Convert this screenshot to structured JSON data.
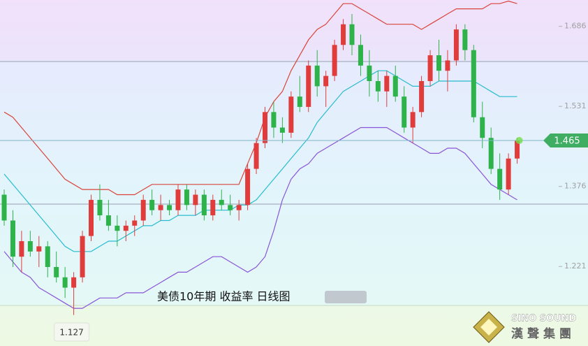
{
  "chart_data": {
    "type": "candlestick",
    "title": "美债10年期 收益率 日线图",
    "logo": {
      "en": "SINO SOUND",
      "zh": "漢聲集團"
    },
    "ylim": [
      1.067,
      1.737
    ],
    "yticks": [
      1.221,
      1.376,
      1.531,
      1.686
    ],
    "up_color": "#e03c3c",
    "down_color": "#2db34a",
    "ohlc": [
      [
        1.36,
        1.37,
        1.3,
        1.31
      ],
      [
        1.31,
        1.33,
        1.22,
        1.24
      ],
      [
        1.24,
        1.29,
        1.21,
        1.27
      ],
      [
        1.27,
        1.29,
        1.24,
        1.25
      ],
      [
        1.25,
        1.28,
        1.22,
        1.26
      ],
      [
        1.26,
        1.27,
        1.2,
        1.22
      ],
      [
        1.22,
        1.25,
        1.19,
        1.2
      ],
      [
        1.2,
        1.22,
        1.16,
        1.18
      ],
      [
        1.18,
        1.21,
        1.127,
        1.2
      ],
      [
        1.2,
        1.29,
        1.19,
        1.28
      ],
      [
        1.28,
        1.36,
        1.27,
        1.35
      ],
      [
        1.35,
        1.38,
        1.31,
        1.32
      ],
      [
        1.32,
        1.35,
        1.29,
        1.3
      ],
      [
        1.3,
        1.32,
        1.26,
        1.29
      ],
      [
        1.29,
        1.31,
        1.27,
        1.3
      ],
      [
        1.3,
        1.32,
        1.28,
        1.31
      ],
      [
        1.31,
        1.36,
        1.3,
        1.35
      ],
      [
        1.35,
        1.37,
        1.32,
        1.33
      ],
      [
        1.33,
        1.36,
        1.31,
        1.34
      ],
      [
        1.34,
        1.35,
        1.32,
        1.33
      ],
      [
        1.33,
        1.38,
        1.32,
        1.37
      ],
      [
        1.37,
        1.38,
        1.33,
        1.34
      ],
      [
        1.34,
        1.37,
        1.32,
        1.36
      ],
      [
        1.36,
        1.37,
        1.31,
        1.32
      ],
      [
        1.32,
        1.36,
        1.31,
        1.35
      ],
      [
        1.35,
        1.37,
        1.33,
        1.34
      ],
      [
        1.34,
        1.36,
        1.32,
        1.33
      ],
      [
        1.33,
        1.35,
        1.31,
        1.34
      ],
      [
        1.34,
        1.42,
        1.33,
        1.41
      ],
      [
        1.41,
        1.47,
        1.4,
        1.46
      ],
      [
        1.46,
        1.53,
        1.45,
        1.52
      ],
      [
        1.52,
        1.54,
        1.47,
        1.49
      ],
      [
        1.49,
        1.51,
        1.46,
        1.48
      ],
      [
        1.48,
        1.56,
        1.47,
        1.55
      ],
      [
        1.55,
        1.59,
        1.52,
        1.53
      ],
      [
        1.53,
        1.62,
        1.52,
        1.61
      ],
      [
        1.61,
        1.64,
        1.55,
        1.57
      ],
      [
        1.57,
        1.6,
        1.53,
        1.59
      ],
      [
        1.59,
        1.66,
        1.58,
        1.65
      ],
      [
        1.65,
        1.7,
        1.64,
        1.69
      ],
      [
        1.69,
        1.71,
        1.63,
        1.65
      ],
      [
        1.65,
        1.67,
        1.59,
        1.61
      ],
      [
        1.61,
        1.64,
        1.55,
        1.58
      ],
      [
        1.58,
        1.6,
        1.54,
        1.56
      ],
      [
        1.56,
        1.6,
        1.53,
        1.59
      ],
      [
        1.59,
        1.61,
        1.54,
        1.55
      ],
      [
        1.55,
        1.57,
        1.48,
        1.49
      ],
      [
        1.49,
        1.53,
        1.46,
        1.52
      ],
      [
        1.52,
        1.59,
        1.51,
        1.58
      ],
      [
        1.58,
        1.64,
        1.57,
        1.63
      ],
      [
        1.63,
        1.66,
        1.58,
        1.6
      ],
      [
        1.6,
        1.64,
        1.56,
        1.62
      ],
      [
        1.62,
        1.69,
        1.61,
        1.68
      ],
      [
        1.68,
        1.69,
        1.62,
        1.64
      ],
      [
        1.64,
        1.65,
        1.5,
        1.51
      ],
      [
        1.51,
        1.54,
        1.45,
        1.47
      ],
      [
        1.47,
        1.49,
        1.4,
        1.41
      ],
      [
        1.41,
        1.44,
        1.35,
        1.37
      ],
      [
        1.37,
        1.44,
        1.36,
        1.43
      ],
      [
        1.43,
        1.47,
        1.42,
        1.465
      ]
    ],
    "bands": [
      {
        "color": "#d9453a",
        "values": [
          1.52,
          1.51,
          1.49,
          1.47,
          1.45,
          1.43,
          1.41,
          1.39,
          1.38,
          1.37,
          1.37,
          1.37,
          1.37,
          1.36,
          1.36,
          1.36,
          1.37,
          1.38,
          1.38,
          1.38,
          1.38,
          1.38,
          1.38,
          1.38,
          1.38,
          1.38,
          1.38,
          1.38,
          1.42,
          1.46,
          1.51,
          1.54,
          1.56,
          1.6,
          1.63,
          1.66,
          1.68,
          1.69,
          1.71,
          1.73,
          1.73,
          1.72,
          1.71,
          1.7,
          1.69,
          1.69,
          1.69,
          1.69,
          1.68,
          1.69,
          1.7,
          1.71,
          1.72,
          1.72,
          1.72,
          1.72,
          1.73,
          1.73,
          1.735,
          1.73
        ]
      },
      {
        "color": "#27bcd0",
        "values": [
          1.4,
          1.38,
          1.36,
          1.34,
          1.32,
          1.3,
          1.28,
          1.26,
          1.25,
          1.25,
          1.25,
          1.26,
          1.27,
          1.27,
          1.28,
          1.29,
          1.3,
          1.3,
          1.31,
          1.31,
          1.32,
          1.32,
          1.32,
          1.33,
          1.33,
          1.33,
          1.33,
          1.34,
          1.34,
          1.35,
          1.37,
          1.39,
          1.41,
          1.43,
          1.45,
          1.47,
          1.5,
          1.52,
          1.54,
          1.56,
          1.57,
          1.58,
          1.59,
          1.6,
          1.6,
          1.59,
          1.58,
          1.57,
          1.57,
          1.57,
          1.58,
          1.58,
          1.58,
          1.58,
          1.58,
          1.57,
          1.56,
          1.55,
          1.55,
          1.55
        ]
      },
      {
        "color": "#8a55d8",
        "values": [
          1.25,
          1.23,
          1.21,
          1.2,
          1.18,
          1.17,
          1.16,
          1.15,
          1.14,
          1.14,
          1.15,
          1.16,
          1.16,
          1.16,
          1.17,
          1.17,
          1.17,
          1.18,
          1.19,
          1.2,
          1.21,
          1.21,
          1.22,
          1.23,
          1.24,
          1.24,
          1.23,
          1.22,
          1.21,
          1.22,
          1.24,
          1.29,
          1.35,
          1.39,
          1.41,
          1.42,
          1.44,
          1.45,
          1.46,
          1.47,
          1.48,
          1.49,
          1.49,
          1.49,
          1.49,
          1.48,
          1.47,
          1.46,
          1.45,
          1.44,
          1.44,
          1.45,
          1.45,
          1.44,
          1.42,
          1.4,
          1.38,
          1.37,
          1.36,
          1.35
        ]
      }
    ]
  }
}
